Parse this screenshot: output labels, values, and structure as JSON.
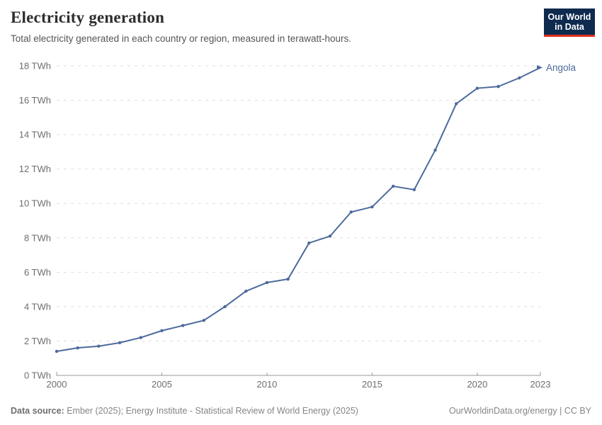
{
  "header": {
    "title": "Electricity generation",
    "subtitle": "Total electricity generated in each country or region, measured in terawatt-hours.",
    "logo": {
      "line1": "Our World",
      "line2": "in Data"
    }
  },
  "footer": {
    "datasource_label": "Data source:",
    "datasource_text": " Ember (2025); Energy Institute - Statistical Review of World Energy (2025)",
    "link_text": "OurWorldinData.org/energy | CC BY"
  },
  "chart_data": {
    "type": "line",
    "title": "Electricity generation",
    "subtitle": "Total electricity generated in each country or region, measured in terawatt-hours.",
    "xlabel": "",
    "ylabel": "",
    "xlim": [
      2000,
      2023
    ],
    "ylim": [
      0,
      18
    ],
    "x_ticks": [
      2000,
      2005,
      2010,
      2015,
      2020,
      2023
    ],
    "y_ticks": [
      0,
      2,
      4,
      6,
      8,
      10,
      12,
      14,
      16,
      18
    ],
    "y_tick_suffix": " TWh",
    "grid": "horizontal-dashed",
    "legend": "end-of-line-label",
    "series": [
      {
        "name": "Angola",
        "color": "#4C6A9C",
        "x": [
          2000,
          2001,
          2002,
          2003,
          2004,
          2005,
          2006,
          2007,
          2008,
          2009,
          2010,
          2011,
          2012,
          2013,
          2014,
          2015,
          2016,
          2017,
          2018,
          2019,
          2020,
          2021,
          2022,
          2023
        ],
        "values": [
          1.4,
          1.6,
          1.7,
          1.9,
          2.2,
          2.6,
          2.9,
          3.2,
          4.0,
          4.9,
          5.4,
          5.6,
          7.7,
          8.1,
          9.5,
          9.8,
          11.0,
          10.8,
          13.1,
          15.8,
          16.7,
          16.8,
          17.3,
          17.9
        ]
      }
    ],
    "colors": {
      "line": "#4C6A9C",
      "grid": "#dedede",
      "axis": "#999999",
      "tick_text": "#6e6e6e"
    }
  }
}
